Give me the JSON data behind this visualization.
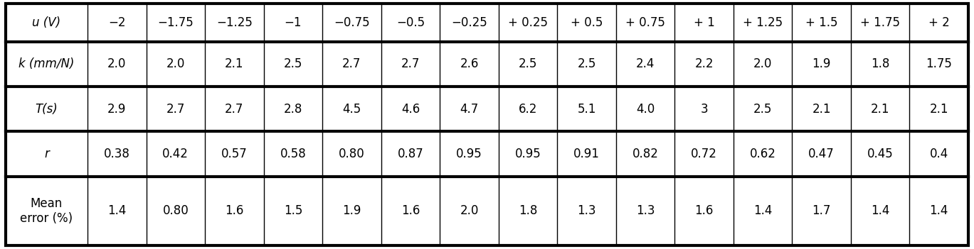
{
  "row_labels": [
    "u (V)",
    "k (mm∕N)",
    "T(s)",
    "r",
    "Mean\nerror (%)"
  ],
  "row_labels_italic": [
    true,
    true,
    true,
    true,
    false
  ],
  "col_data": [
    [
      "−2",
      "−1.75",
      "−1.25",
      "−1",
      "−0.75",
      "−0.5",
      "−0.25",
      "+ 0.25",
      "+ 0.5",
      "+ 0.75",
      "+ 1",
      "+ 1.25",
      "+ 1.5",
      "+ 1.75",
      "+ 2"
    ],
    [
      "2.0",
      "2.0",
      "2.1",
      "2.5",
      "2.7",
      "2.7",
      "2.6",
      "2.5",
      "2.5",
      "2.4",
      "2.2",
      "2.0",
      "1.9",
      "1.8",
      "1.75"
    ],
    [
      "2.9",
      "2.7",
      "2.7",
      "2.8",
      "4.5",
      "4.6",
      "4.7",
      "6.2",
      "5.1",
      "4.0",
      "3",
      "2.5",
      "2.1",
      "2.1",
      "2.1"
    ],
    [
      "0.38",
      "0.42",
      "0.57",
      "0.58",
      "0.80",
      "0.87",
      "0.95",
      "0.95",
      "0.91",
      "0.82",
      "0.72",
      "0.62",
      "0.47",
      "0.45",
      "0.4"
    ],
    [
      "1.4",
      "0.80",
      "1.6",
      "1.5",
      "1.9",
      "1.6",
      "2.0",
      "1.8",
      "1.3",
      "1.3",
      "1.6",
      "1.4",
      "1.7",
      "1.4",
      "1.4"
    ]
  ],
  "row0_header": "u (V)",
  "row1_header": "k (mm∕N)",
  "row2_header": "T(s)",
  "row3_header": "r",
  "row4_header": "Mean\nerror (%)",
  "n_rows": 5,
  "n_data_cols": 15,
  "bg_color": "#ffffff",
  "border_color": "#000000",
  "font_size": 12,
  "thick_lw": 3.0,
  "thin_lw": 1.0
}
